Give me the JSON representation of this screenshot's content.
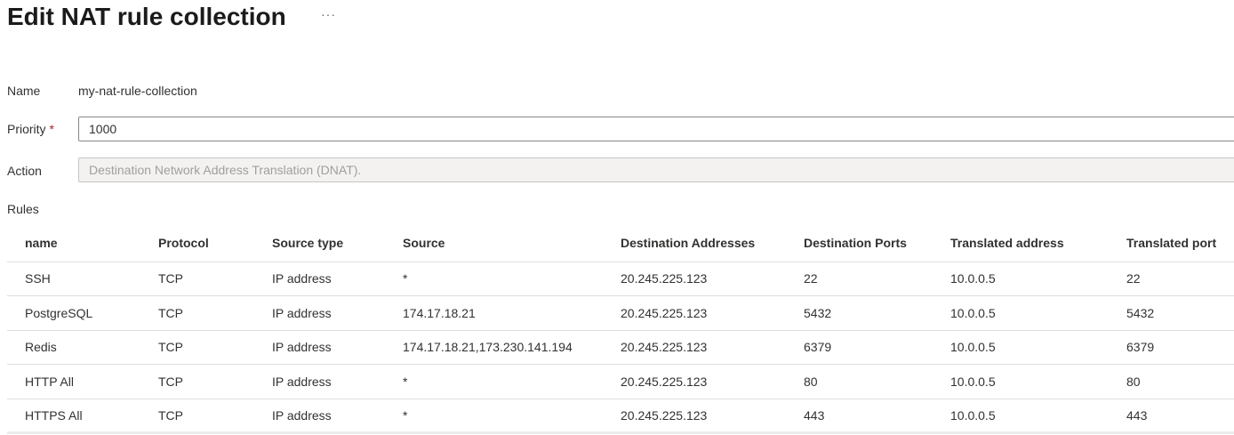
{
  "header": {
    "title": "Edit NAT rule collection",
    "more_label": "···"
  },
  "form": {
    "name_label": "Name",
    "name_value": "my-nat-rule-collection",
    "priority_label": "Priority",
    "required_mark": "*",
    "priority_value": "1000",
    "action_label": "Action",
    "action_value": "Destination Network Address Translation (DNAT).",
    "rules_label": "Rules"
  },
  "rules": {
    "columns": [
      "name",
      "Protocol",
      "Source type",
      "Source",
      "Destination Addresses",
      "Destination Ports",
      "Translated address",
      "Translated port"
    ],
    "rows": [
      [
        "SSH",
        "TCP",
        "IP address",
        "*",
        "20.245.225.123",
        "22",
        "10.0.0.5",
        "22"
      ],
      [
        "PostgreSQL",
        "TCP",
        "IP address",
        "174.17.18.21",
        "20.245.225.123",
        "5432",
        "10.0.0.5",
        "5432"
      ],
      [
        "Redis",
        "TCP",
        "IP address",
        "174.17.18.21,173.230.141.194",
        "20.245.225.123",
        "6379",
        "10.0.0.5",
        "6379"
      ],
      [
        "HTTP All",
        "TCP",
        "IP address",
        "*",
        "20.245.225.123",
        "80",
        "10.0.0.5",
        "80"
      ],
      [
        "HTTPS All",
        "TCP",
        "IP address",
        "*",
        "20.245.225.123",
        "443",
        "10.0.0.5",
        "443"
      ]
    ]
  }
}
